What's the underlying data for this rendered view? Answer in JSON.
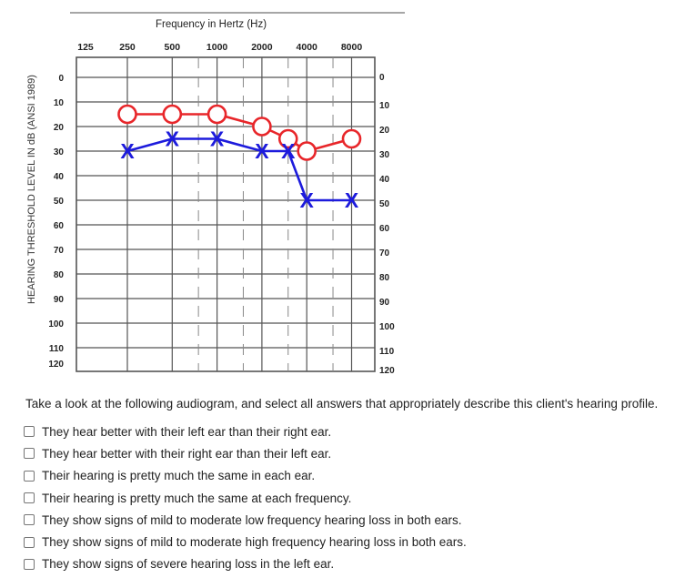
{
  "audiogram": {
    "top_title": "Frequency in Hertz (Hz)",
    "y_axis_title": "HEARING THRESHOLD LEVEL IN dB (ANSI 1989)",
    "freq_labels": [
      "125",
      "250",
      "500",
      "1000",
      "2000",
      "4000",
      "8000"
    ],
    "db_labels_left": [
      "0",
      "10",
      "20",
      "30",
      "40",
      "50",
      "60",
      "70",
      "80",
      "90",
      "100",
      "110",
      "120"
    ],
    "db_labels_right": [
      "0",
      "10",
      "20",
      "30",
      "40",
      "50",
      "60",
      "70",
      "80",
      "90",
      "100",
      "110",
      "120"
    ],
    "colors": {
      "right_ear": "#e8262a",
      "left_ear": "#1d1bdc",
      "grid": "#555555"
    }
  },
  "chart_data": {
    "type": "line",
    "x": [
      250,
      500,
      1000,
      2000,
      3000,
      4000,
      8000
    ],
    "x_scale": "log",
    "ylim": [
      120,
      0
    ],
    "series": [
      {
        "symbol": "O",
        "color": "#e8262a",
        "x": [
          250,
          500,
          1000,
          2000,
          3000,
          4000,
          8000
        ],
        "values": [
          15,
          15,
          15,
          20,
          25,
          30,
          25
        ]
      },
      {
        "symbol": "X",
        "color": "#1d1bdc",
        "x": [
          250,
          500,
          1000,
          2000,
          3000,
          4000,
          8000
        ],
        "values": [
          30,
          25,
          25,
          30,
          30,
          50,
          50
        ]
      }
    ]
  },
  "question": {
    "prompt": "Take a look at the following audiogram, and select all answers that appropriately describe this client's hearing profile.",
    "options": [
      "They hear better with their left ear than their right ear.",
      "They hear better with their right ear than their left ear.",
      "Their hearing is pretty much the same in each ear.",
      "Their hearing is pretty much the same at each frequency.",
      "They show signs of mild to moderate low frequency hearing loss in both ears.",
      "They show signs of mild to moderate high frequency hearing loss in both ears.",
      "They show signs of severe hearing loss in the left ear."
    ]
  }
}
